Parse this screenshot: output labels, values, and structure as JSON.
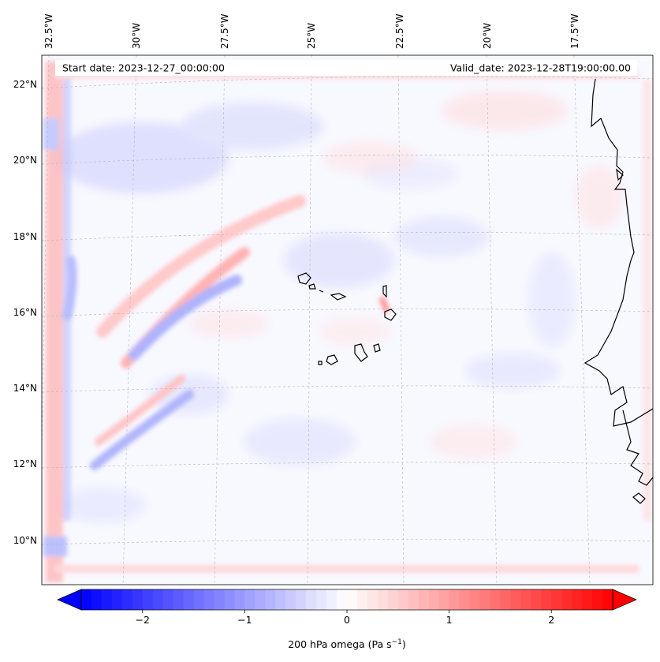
{
  "header": {
    "start_date": "Start date: 2023-12-27_00:00:00",
    "valid_date": "Valid_date: 2023-12-28T19:00:00.00"
  },
  "map": {
    "variable": "200 hPa omega",
    "lon_labels": [
      "32.5°W",
      "30°W",
      "27.5°W",
      "25°W",
      "22.5°W",
      "20°W",
      "17.5°W"
    ],
    "lat_labels": [
      "22°N",
      "20°N",
      "18°N",
      "16°N",
      "14°N",
      "12°N",
      "10°N"
    ],
    "colors": {
      "negative": "#0000ff",
      "neutral": "#ffffff",
      "positive": "#ff0000",
      "coast": "#000000",
      "grid": "#b0b0b0"
    }
  },
  "colorbar": {
    "label": "200 hPa omega (Pa s",
    "label_sup": "−1",
    "label_end": ")",
    "min": -2.6,
    "max": 2.6,
    "ticks": [
      {
        "value": -2,
        "label": "−2"
      },
      {
        "value": -1,
        "label": "−1"
      },
      {
        "value": 0,
        "label": "0"
      },
      {
        "value": 1,
        "label": "1"
      },
      {
        "value": 2,
        "label": "2"
      }
    ]
  }
}
